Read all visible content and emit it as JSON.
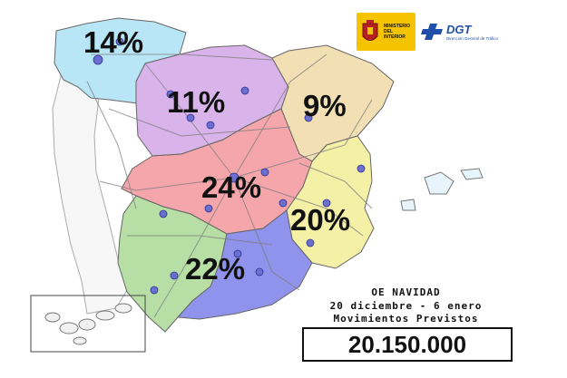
{
  "map": {
    "regions": [
      {
        "id": "northwest",
        "percent": "14%",
        "color": "#b9e6f7"
      },
      {
        "id": "north-center",
        "percent": "11%",
        "color": "#d9b4ea"
      },
      {
        "id": "northeast",
        "percent": "9%",
        "color": "#f2dfb3"
      },
      {
        "id": "center",
        "percent": "24%",
        "color": "#f4a6ab"
      },
      {
        "id": "east",
        "percent": "20%",
        "color": "#f4f0a6"
      },
      {
        "id": "southwest",
        "percent": "22%",
        "color": "#b7dfa5"
      },
      {
        "id": "southeast",
        "percent": "",
        "color": "#8f93ec"
      }
    ],
    "road_color": "#7b7b7b"
  },
  "logos": {
    "ministerio": "MINISTERIO DEL INTERIOR",
    "dgt_name": "DGT",
    "dgt_sub": "Dirección General de Tráfico"
  },
  "caption": {
    "line1": "OE NAVIDAD",
    "line2": "20 diciembre - 6 enero",
    "line3": "Movimientos Previstos"
  },
  "total": "20.150.000"
}
